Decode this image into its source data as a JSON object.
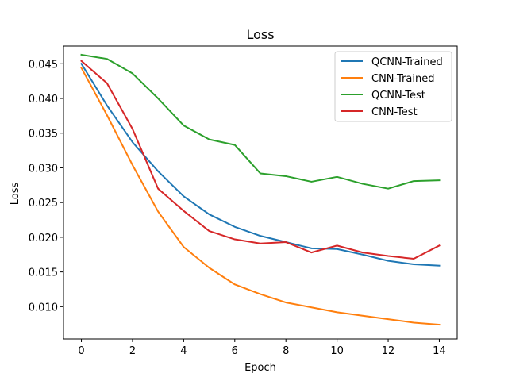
{
  "chart_data": {
    "type": "line",
    "title": "Loss",
    "xlabel": "Epoch",
    "ylabel": "Loss",
    "xlim": [
      -0.7,
      14.7
    ],
    "ylim": [
      0.00535,
      0.04755
    ],
    "xticks": [
      0,
      2,
      4,
      6,
      8,
      10,
      12,
      14
    ],
    "yticks": [
      0.01,
      0.015,
      0.02,
      0.025,
      0.03,
      0.035,
      0.04,
      0.045
    ],
    "ytick_labels": [
      "0.010",
      "0.015",
      "0.020",
      "0.025",
      "0.030",
      "0.035",
      "0.040",
      "0.045"
    ],
    "grid": false,
    "legend_position": "top-right",
    "x": [
      0,
      1,
      2,
      3,
      4,
      5,
      6,
      7,
      8,
      9,
      10,
      11,
      12,
      13,
      14
    ],
    "series": [
      {
        "name": "QCNN-Trained",
        "color": "#1f77b4",
        "values": [
          0.045,
          0.039,
          0.0337,
          0.0295,
          0.0259,
          0.0233,
          0.0215,
          0.0202,
          0.0193,
          0.0184,
          0.0183,
          0.0175,
          0.0166,
          0.0161,
          0.0159
        ]
      },
      {
        "name": "CNN-Trained",
        "color": "#ff7f0e",
        "values": [
          0.0444,
          0.0376,
          0.0304,
          0.0237,
          0.0186,
          0.0156,
          0.0132,
          0.0118,
          0.0106,
          0.0099,
          0.0092,
          0.0087,
          0.0082,
          0.0077,
          0.0074
        ]
      },
      {
        "name": "QCNN-Test",
        "color": "#2ca02c",
        "values": [
          0.0463,
          0.0457,
          0.0436,
          0.04,
          0.0361,
          0.0341,
          0.0333,
          0.0292,
          0.0288,
          0.028,
          0.0287,
          0.0277,
          0.027,
          0.0281,
          0.0282
        ]
      },
      {
        "name": "CNN-Test",
        "color": "#d62728",
        "values": [
          0.0454,
          0.0422,
          0.0356,
          0.027,
          0.0238,
          0.0209,
          0.0197,
          0.0191,
          0.0193,
          0.0178,
          0.0188,
          0.0178,
          0.0173,
          0.0169,
          0.0188
        ]
      }
    ]
  }
}
